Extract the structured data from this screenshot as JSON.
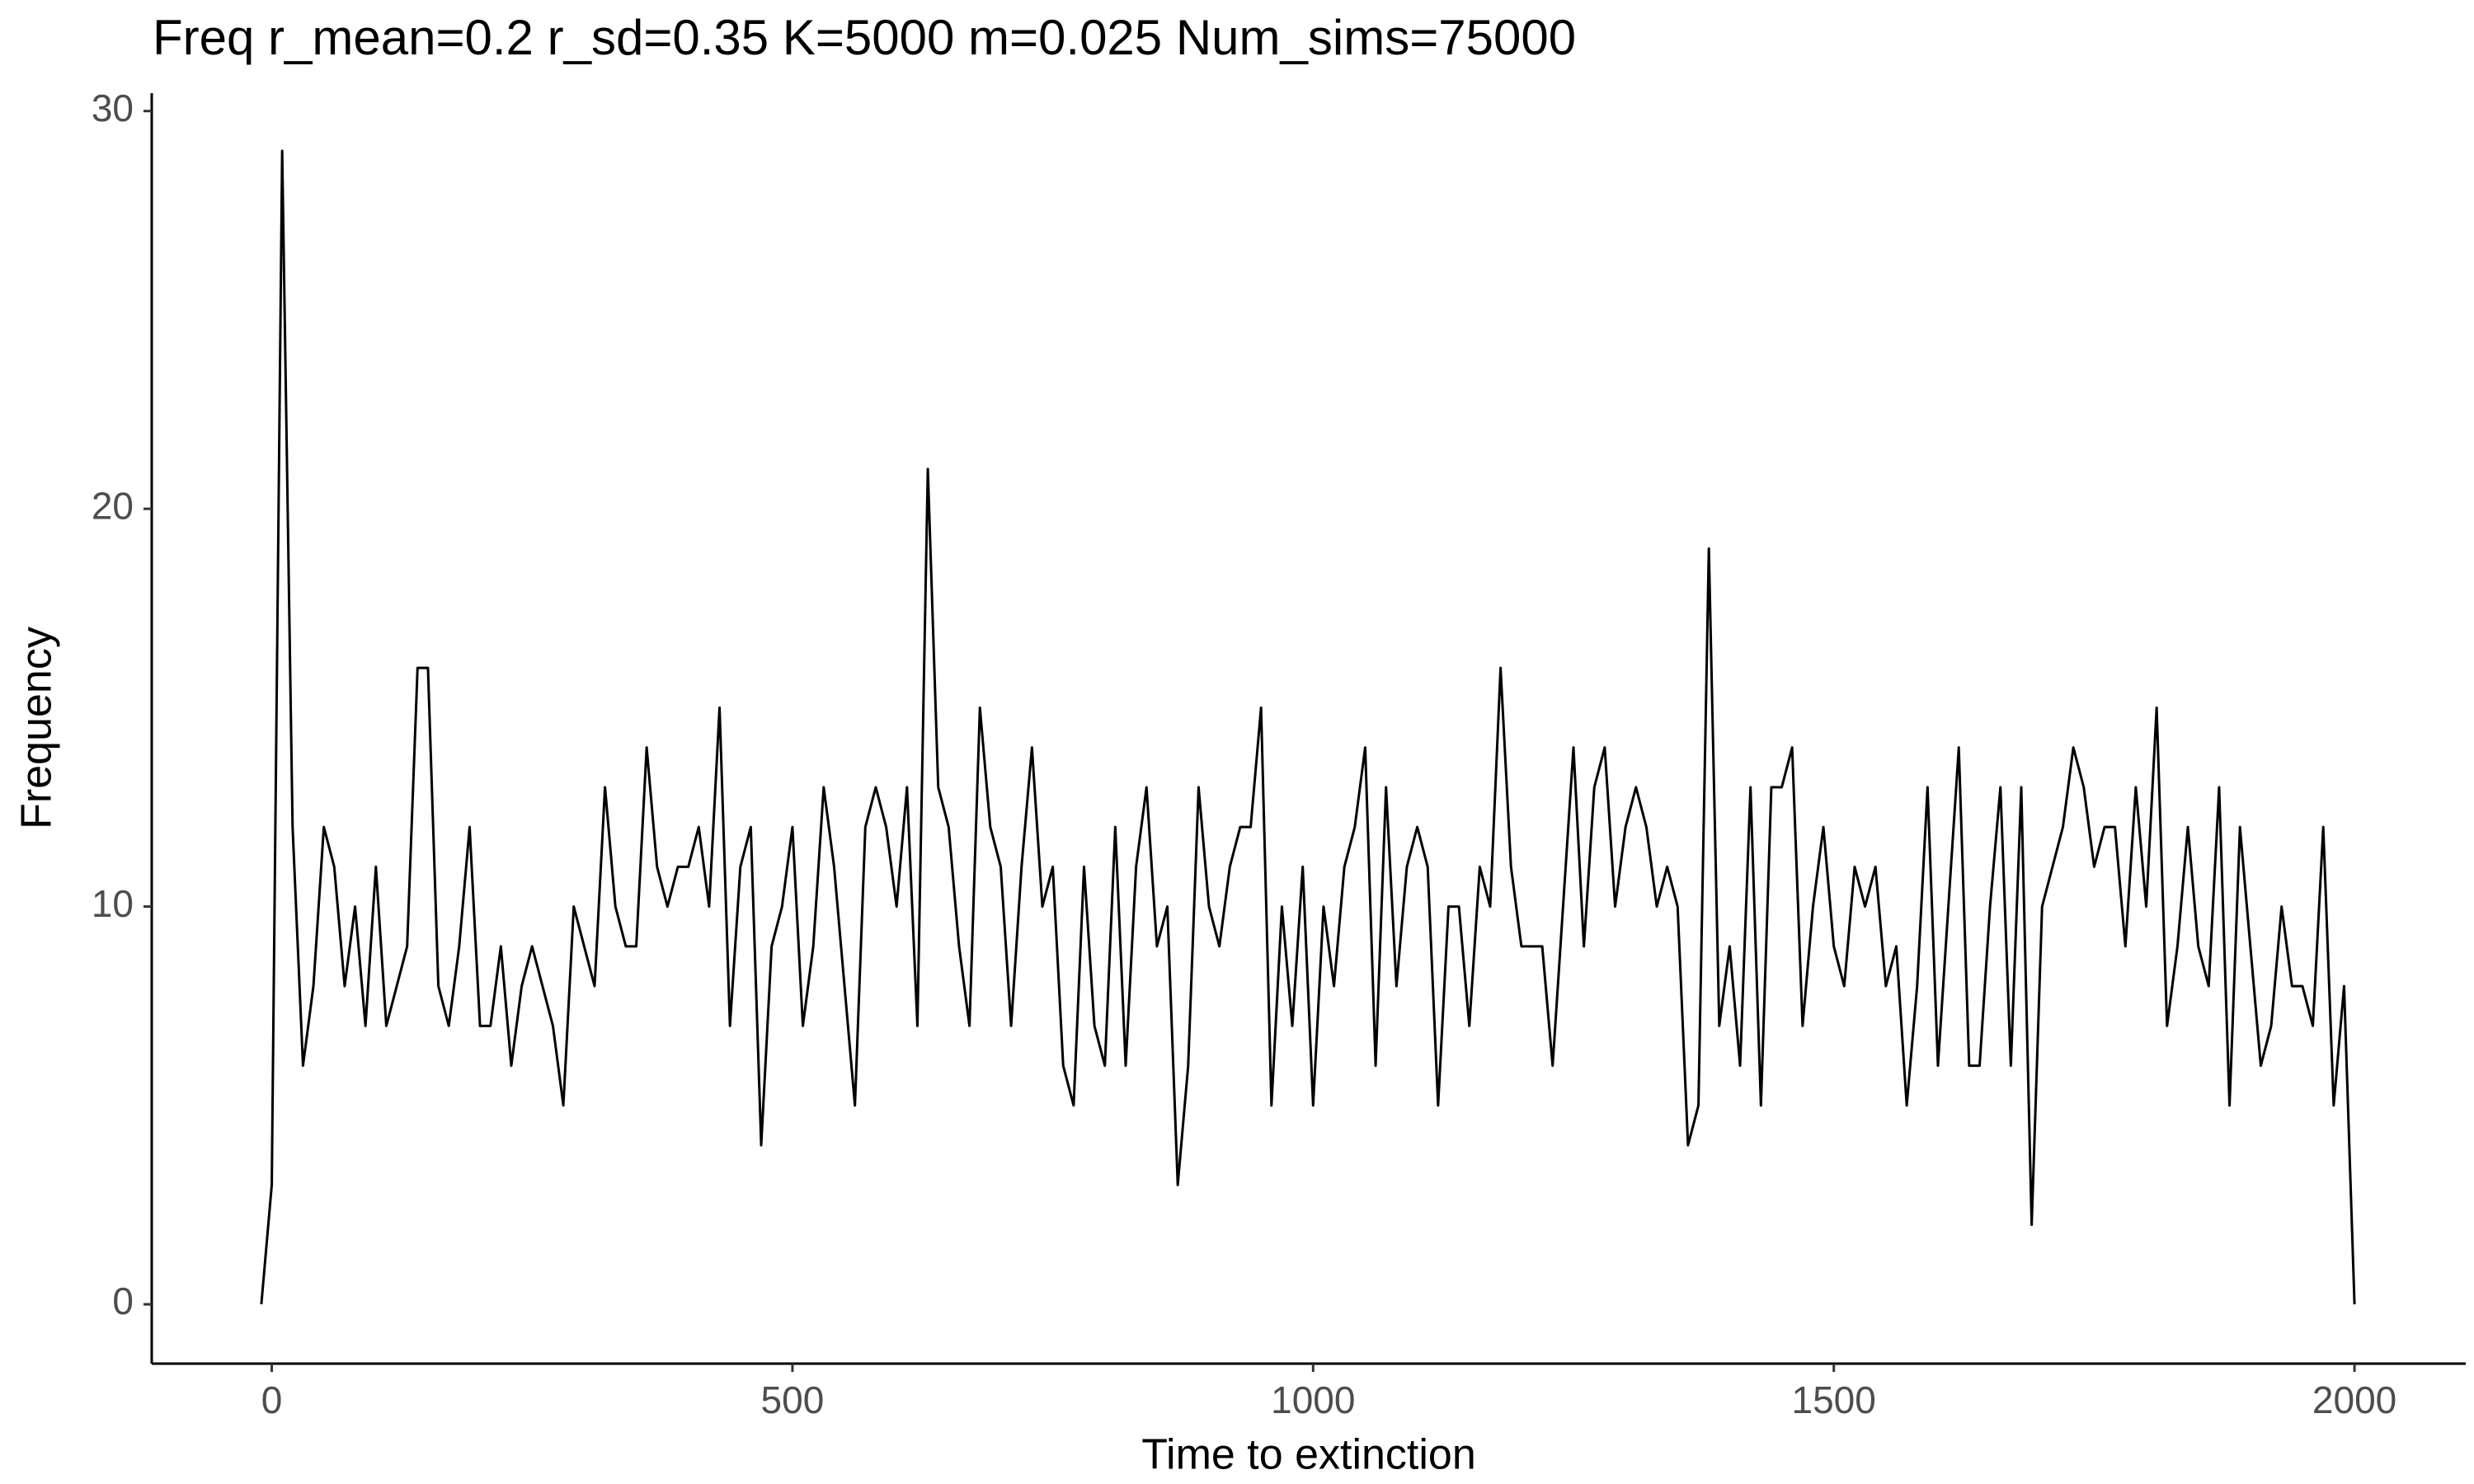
{
  "chart_data": {
    "type": "line",
    "title": "Freq r_mean=0.2 r_sd=0.35 K=5000 m=0.025 Num_sims=75000",
    "x_label": "Time to extinction",
    "y_label": "Frequency",
    "xlim": [
      -110.5,
      2100.5
    ],
    "ylim": [
      -1.45,
      30.45
    ],
    "xticks": [
      0,
      500,
      1000,
      1500,
      2000
    ],
    "yticks": [
      0,
      10,
      20,
      30
    ],
    "grid": false,
    "color": "#000000",
    "x": [
      -10,
      0,
      10,
      20,
      30,
      40,
      50,
      60,
      70,
      80,
      90,
      100,
      110,
      120,
      130,
      140,
      150,
      160,
      170,
      180,
      190,
      200,
      210,
      220,
      230,
      240,
      250,
      260,
      270,
      280,
      290,
      300,
      310,
      320,
      330,
      340,
      350,
      360,
      370,
      380,
      390,
      400,
      410,
      420,
      430,
      440,
      450,
      460,
      470,
      480,
      490,
      500,
      510,
      520,
      530,
      540,
      550,
      560,
      570,
      580,
      590,
      600,
      610,
      620,
      630,
      640,
      650,
      660,
      670,
      680,
      690,
      700,
      710,
      720,
      730,
      740,
      750,
      760,
      770,
      780,
      790,
      800,
      810,
      820,
      830,
      840,
      850,
      860,
      870,
      880,
      890,
      900,
      910,
      920,
      930,
      940,
      950,
      960,
      970,
      980,
      990,
      1000,
      1010,
      1020,
      1030,
      1040,
      1050,
      1060,
      1070,
      1080,
      1090,
      1100,
      1110,
      1120,
      1130,
      1140,
      1150,
      1160,
      1170,
      1180,
      1190,
      1200,
      1210,
      1220,
      1230,
      1240,
      1250,
      1260,
      1270,
      1280,
      1290,
      1300,
      1310,
      1320,
      1330,
      1340,
      1350,
      1360,
      1370,
      1380,
      1390,
      1400,
      1410,
      1420,
      1430,
      1440,
      1450,
      1460,
      1470,
      1480,
      1490,
      1500,
      1510,
      1520,
      1530,
      1540,
      1550,
      1560,
      1570,
      1580,
      1590,
      1600,
      1610,
      1620,
      1630,
      1640,
      1650,
      1660,
      1670,
      1680,
      1690,
      1700,
      1710,
      1720,
      1730,
      1740,
      1750,
      1760,
      1770,
      1780,
      1790,
      1800,
      1810,
      1820,
      1830,
      1840,
      1850,
      1860,
      1870,
      1880,
      1890,
      1900,
      1910,
      1920,
      1930,
      1940,
      1950,
      1960,
      1970,
      1980,
      1990,
      2000
    ],
    "values": [
      0,
      3,
      29,
      12,
      6,
      8,
      12,
      11,
      8,
      10,
      7,
      11,
      7,
      8,
      9,
      16,
      16,
      8,
      7,
      9,
      12,
      7,
      7,
      9,
      6,
      8,
      9,
      8,
      7,
      5,
      10,
      9,
      8,
      13,
      10,
      9,
      9,
      14,
      11,
      10,
      11,
      11,
      12,
      10,
      15,
      7,
      11,
      12,
      4,
      9,
      10,
      12,
      7,
      9,
      13,
      11,
      8,
      5,
      12,
      13,
      12,
      10,
      13,
      7,
      21,
      13,
      12,
      9,
      7,
      15,
      12,
      11,
      7,
      11,
      14,
      10,
      11,
      6,
      5,
      11,
      7,
      6,
      12,
      6,
      11,
      13,
      9,
      10,
      3,
      6,
      13,
      10,
      9,
      11,
      12,
      12,
      15,
      5,
      10,
      7,
      11,
      5,
      10,
      8,
      11,
      12,
      14,
      6,
      13,
      8,
      11,
      12,
      11,
      5,
      10,
      10,
      7,
      11,
      10,
      16,
      11,
      9,
      9,
      9,
      6,
      10,
      14,
      9,
      13,
      14,
      10,
      12,
      13,
      12,
      10,
      11,
      10,
      4,
      5,
      19,
      7,
      9,
      6,
      13,
      5,
      13,
      13,
      14,
      7,
      10,
      12,
      9,
      8,
      11,
      10,
      11,
      8,
      9,
      5,
      8,
      13,
      6,
      10,
      14,
      6,
      6,
      10,
      13,
      6,
      13,
      2,
      10,
      11,
      12,
      14,
      13,
      11,
      12,
      12,
      9,
      13,
      10,
      15,
      7,
      9,
      12,
      9,
      8,
      13,
      5,
      12,
      9,
      6,
      7,
      10,
      8,
      8,
      7,
      12,
      5,
      8,
      0
    ]
  }
}
